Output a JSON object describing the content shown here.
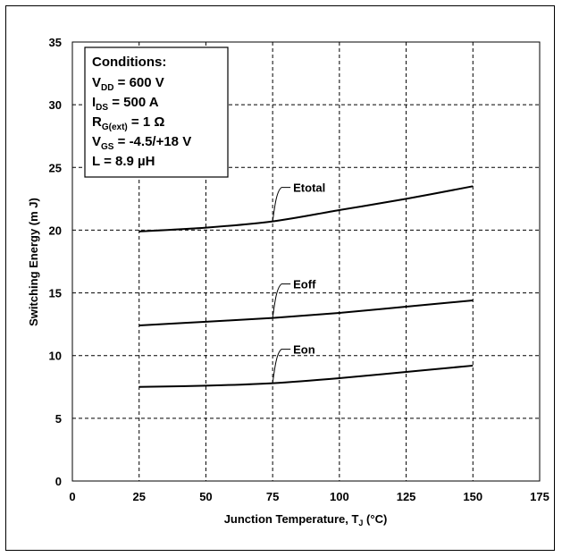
{
  "chart_data": {
    "type": "line",
    "xlabel": "Junction Temperature, T",
    "xlabel_sub": "J",
    "xlabel_unit": " (°C)",
    "ylabel": "Switching Energy (m J)",
    "xlim": [
      0,
      175
    ],
    "ylim": [
      0,
      35
    ],
    "xticks": [
      0,
      25,
      50,
      75,
      100,
      125,
      150,
      175
    ],
    "yticks": [
      0,
      5,
      10,
      15,
      20,
      25,
      30,
      35
    ],
    "grid": true,
    "legend": "none",
    "series": [
      {
        "name": "Etotal",
        "color": "#000000",
        "x": [
          25,
          50,
          75,
          100,
          125,
          150
        ],
        "y": [
          19.9,
          20.2,
          20.7,
          21.6,
          22.5,
          23.5
        ]
      },
      {
        "name": "Eoff",
        "color": "#000000",
        "x": [
          25,
          50,
          75,
          100,
          125,
          150
        ],
        "y": [
          12.4,
          12.7,
          13.0,
          13.4,
          13.9,
          14.4
        ]
      },
      {
        "name": "Eon",
        "color": "#000000",
        "x": [
          25,
          50,
          75,
          100,
          125,
          150
        ],
        "y": [
          7.5,
          7.6,
          7.8,
          8.2,
          8.7,
          9.2
        ]
      }
    ],
    "labels": [
      {
        "series": "Etotal",
        "anchor": [
          75,
          20.7
        ]
      },
      {
        "series": "Eoff",
        "anchor": [
          75,
          13.0
        ]
      },
      {
        "series": "Eon",
        "anchor": [
          75,
          7.8
        ]
      }
    ],
    "conditions": {
      "title": "Conditions:",
      "lines": [
        {
          "main": "V",
          "sub": "DD",
          "rest": " = 600 V"
        },
        {
          "main": "I",
          "sub": "DS",
          "rest": " = 500 A"
        },
        {
          "main": "R",
          "sub": "G(ext)",
          "rest": " = 1 Ω"
        },
        {
          "main": "V",
          "sub": "GS",
          "rest": " = -4.5/+18 V"
        },
        {
          "main": "L",
          "sub": "",
          "rest": " = 8.9 µH"
        }
      ]
    }
  }
}
